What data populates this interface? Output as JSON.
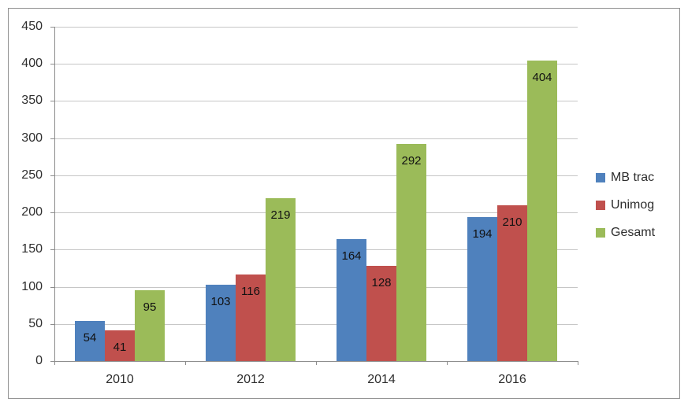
{
  "chart_data": {
    "type": "bar",
    "title": "",
    "categories": [
      "2010",
      "2012",
      "2014",
      "2016"
    ],
    "series": [
      {
        "name": "MB trac",
        "color": "#4F81BD",
        "values": [
          54,
          103,
          164,
          194
        ]
      },
      {
        "name": "Unimog",
        "color": "#C0504D",
        "values": [
          41,
          116,
          128,
          210
        ]
      },
      {
        "name": "Gesamt",
        "color": "#9BBB59",
        "values": [
          95,
          219,
          292,
          404
        ]
      }
    ],
    "ylim": [
      0,
      450
    ],
    "ytick_step": 50,
    "ytick_labels": [
      "0",
      "50",
      "100",
      "150",
      "200",
      "250",
      "300",
      "350",
      "400",
      "450"
    ],
    "grid": true,
    "legend_position": "right",
    "data_labels": "inside-end"
  },
  "colors": {
    "background": "#FFFFFF",
    "frame_border": "#8F8F8F",
    "gridline": "#C6C6C6",
    "axis_line": "#8C8C8C",
    "axis_text": "#2E2E2E",
    "data_label_text": "#111111"
  }
}
